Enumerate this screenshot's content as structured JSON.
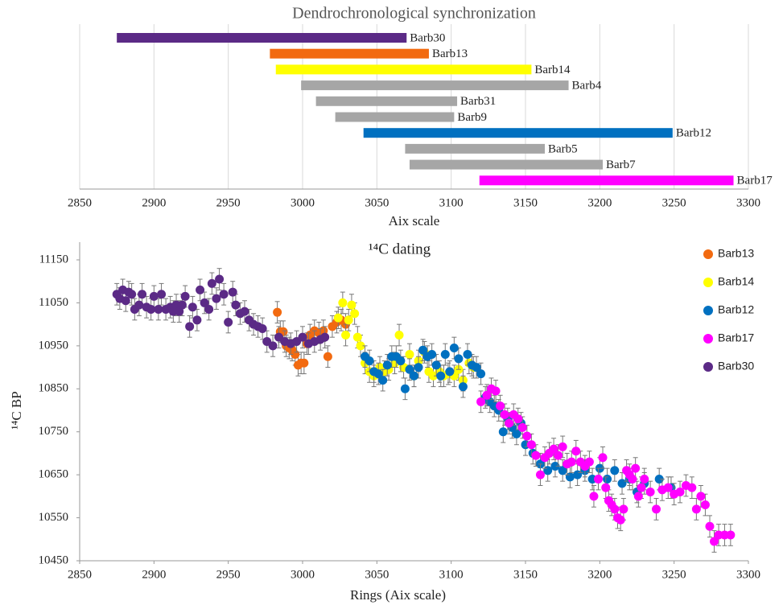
{
  "chart_data": [
    {
      "type": "range-bar",
      "title": "Dendrochronological synchronization",
      "x_label": "Aix scale",
      "categories": [
        "Barb30",
        "Barb13",
        "Barb14",
        "Barb4",
        "Barb31",
        "Barb9",
        "Barb12",
        "Barb5",
        "Barb7",
        "Barb17"
      ],
      "starts": [
        2875,
        2978,
        2982,
        2999,
        3009,
        3022,
        3041,
        3069,
        3072,
        3119
      ],
      "ends": [
        3070,
        3085,
        3154,
        3179,
        3104,
        3102,
        3249,
        3163,
        3202,
        3290
      ],
      "colors": [
        "#5b2a86",
        "#f26a10",
        "#ffff00",
        "#a6a6a6",
        "#a6a6a6",
        "#a6a6a6",
        "#0070c0",
        "#a6a6a6",
        "#a6a6a6",
        "#ff00ff"
      ],
      "xlim": [
        2850,
        3300
      ],
      "xticks": [
        2850,
        2900,
        2950,
        3000,
        3050,
        3100,
        3150,
        3200,
        3250,
        3300
      ],
      "grid": true
    },
    {
      "type": "scatter",
      "title": "¹⁴C dating",
      "x_label": "Rings (Aix scale)",
      "y_label": "¹⁴C BP",
      "xlim": [
        2850,
        3300
      ],
      "xticks": [
        2850,
        2900,
        2950,
        3000,
        3050,
        3100,
        3150,
        3200,
        3250,
        3300
      ],
      "ylim": [
        10450,
        11150
      ],
      "yticks": [
        10450,
        10550,
        10650,
        10750,
        10850,
        10950,
        11050,
        11150
      ],
      "grid": false,
      "legend": "right",
      "series": [
        {
          "name": "Barb13",
          "color": "#f26a10",
          "error": 25,
          "x": [
            2983,
            2985,
            2987,
            2989,
            2991,
            2993,
            2995,
            2997,
            2999,
            3001,
            3003,
            3005,
            3008,
            3011,
            3014,
            3017,
            3020,
            3023,
            3026,
            3029
          ],
          "values": [
            11028,
            10983,
            10983,
            10950,
            10945,
            10940,
            10930,
            10905,
            10910,
            10910,
            10955,
            10975,
            10985,
            10980,
            10985,
            10925,
            10995,
            11005,
            11010,
            11000
          ]
        },
        {
          "name": "Barb14",
          "color": "#ffff00",
          "error": 25,
          "x": [
            3024,
            3027,
            3029,
            3031,
            3033,
            3035,
            3037,
            3039,
            3042,
            3045,
            3048,
            3052,
            3055,
            3058,
            3062,
            3065,
            3068,
            3072,
            3075,
            3078,
            3082,
            3085,
            3088,
            3092,
            3095,
            3098,
            3102,
            3105,
            3108,
            3112,
            3115
          ],
          "values": [
            11015,
            11050,
            10975,
            11010,
            11045,
            11025,
            10970,
            10950,
            10910,
            10890,
            10880,
            10900,
            10890,
            10895,
            10910,
            10975,
            10900,
            10930,
            10880,
            10915,
            10935,
            10890,
            10880,
            10890,
            10880,
            10885,
            10880,
            10895,
            10870,
            10910,
            10900
          ]
        },
        {
          "name": "Barb12",
          "color": "#0070c0",
          "error": 25,
          "x": [
            3042,
            3045,
            3048,
            3051,
            3054,
            3057,
            3060,
            3063,
            3066,
            3069,
            3072,
            3075,
            3078,
            3081,
            3084,
            3087,
            3090,
            3093,
            3096,
            3099,
            3102,
            3105,
            3108,
            3111,
            3114,
            3117,
            3120,
            3123,
            3126,
            3129,
            3132,
            3135,
            3138,
            3141,
            3144,
            3147,
            3150,
            3155,
            3160,
            3165,
            3170,
            3175,
            3180,
            3185,
            3190,
            3195,
            3200,
            3205,
            3210,
            3215,
            3220,
            3225,
            3230,
            3240,
            3248
          ],
          "values": [
            10925,
            10915,
            10890,
            10885,
            10870,
            10905,
            10925,
            10925,
            10915,
            10850,
            10895,
            10880,
            10900,
            10940,
            10925,
            10930,
            10905,
            10880,
            10930,
            10890,
            10945,
            10920,
            10855,
            10930,
            10905,
            10900,
            10885,
            10830,
            10820,
            10810,
            10800,
            10750,
            10780,
            10760,
            10745,
            10770,
            10720,
            10700,
            10675,
            10660,
            10670,
            10660,
            10645,
            10650,
            10660,
            10640,
            10665,
            10640,
            10660,
            10630,
            10640,
            10610,
            10630,
            10640,
            10620
          ]
        },
        {
          "name": "Barb17",
          "color": "#ff00ff",
          "error": 25,
          "x": [
            3120,
            3124,
            3127,
            3130,
            3133,
            3136,
            3139,
            3142,
            3145,
            3148,
            3151,
            3154,
            3157,
            3160,
            3163,
            3166,
            3169,
            3172,
            3175,
            3178,
            3181,
            3184,
            3187,
            3190,
            3193,
            3196,
            3199,
            3202,
            3204,
            3206,
            3208,
            3210,
            3212,
            3214,
            3216,
            3218,
            3220,
            3222,
            3224,
            3226,
            3228,
            3230,
            3234,
            3238,
            3242,
            3246,
            3250,
            3254,
            3258,
            3262,
            3265,
            3268,
            3271,
            3274,
            3277,
            3280,
            3284,
            3288
          ],
          "values": [
            10820,
            10835,
            10850,
            10845,
            10810,
            10790,
            10770,
            10790,
            10780,
            10760,
            10740,
            10720,
            10695,
            10650,
            10690,
            10700,
            10710,
            10695,
            10715,
            10675,
            10680,
            10705,
            10680,
            10670,
            10680,
            10600,
            10640,
            10690,
            10620,
            10590,
            10580,
            10570,
            10550,
            10545,
            10570,
            10660,
            10650,
            10640,
            10665,
            10600,
            10620,
            10640,
            10610,
            10570,
            10615,
            10620,
            10605,
            10610,
            10625,
            10620,
            10570,
            10600,
            10580,
            10530,
            10495,
            10510,
            10510,
            10510
          ]
        },
        {
          "name": "Barb30",
          "color": "#5b2a86",
          "error": 25,
          "x": [
            2875,
            2877,
            2879,
            2881,
            2883,
            2885,
            2887,
            2890,
            2892,
            2895,
            2898,
            2900,
            2903,
            2905,
            2908,
            2911,
            2913,
            2915,
            2917,
            2919,
            2921,
            2924,
            2926,
            2929,
            2931,
            2934,
            2937,
            2939,
            2942,
            2944,
            2947,
            2950,
            2953,
            2955,
            2958,
            2961,
            2964,
            2967,
            2970,
            2973,
            2976,
            2980,
            2984,
            2988,
            2992,
            2996,
            3000,
            3004,
            3008,
            3012,
            3015
          ],
          "values": [
            11070,
            11060,
            11080,
            11055,
            11075,
            11070,
            11035,
            11045,
            11070,
            11040,
            11035,
            11065,
            11035,
            11070,
            11035,
            11040,
            11030,
            11045,
            11030,
            11045,
            11065,
            10995,
            11040,
            11010,
            11080,
            11050,
            11035,
            11095,
            11060,
            11105,
            11070,
            11005,
            11075,
            11045,
            11025,
            11030,
            11010,
            11000,
            10995,
            10990,
            10960,
            10950,
            10970,
            10960,
            10955,
            10960,
            10970,
            10955,
            10960,
            10965,
            10970
          ]
        }
      ]
    }
  ]
}
